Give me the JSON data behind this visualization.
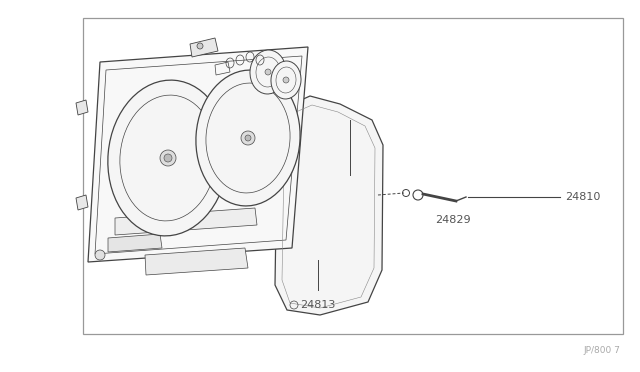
{
  "bg_color": "#ffffff",
  "border_color": "#999999",
  "line_color": "#444444",
  "label_color": "#555555",
  "lw": 0.9,
  "border": [
    0.13,
    0.05,
    0.845,
    0.9
  ],
  "ref_text": "JP/800 7",
  "labels": {
    "24810": [
      0.945,
      0.495
    ],
    "24829": [
      0.73,
      0.575
    ],
    "24813": [
      0.46,
      0.205
    ]
  }
}
